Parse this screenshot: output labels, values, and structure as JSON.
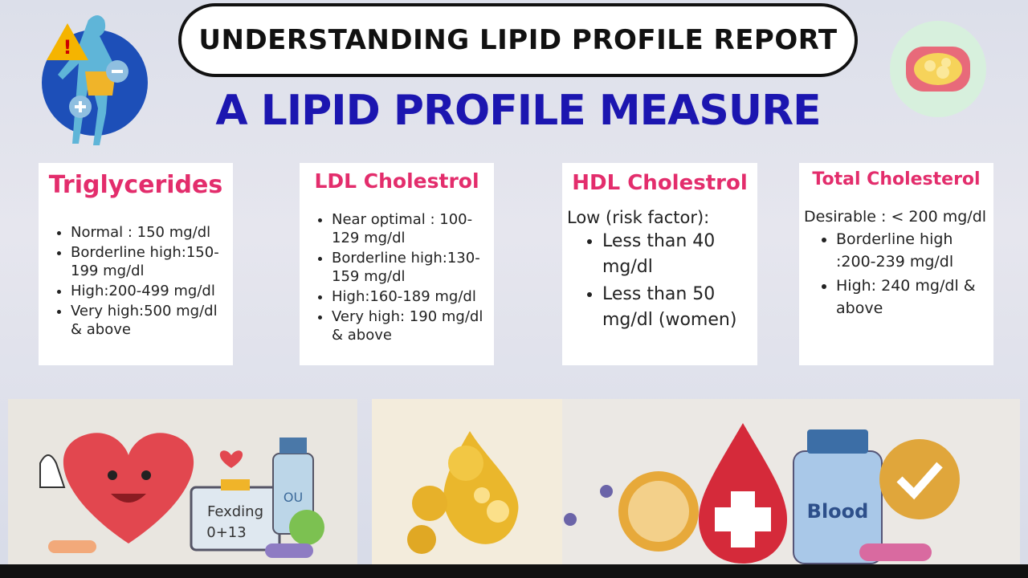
{
  "header": {
    "title": "UNDERSTANDING LIPID PROFILE REPORT",
    "subtitle": "A LIPID PROFILE MEASURE"
  },
  "cards": [
    {
      "title": "Triglycerides",
      "items": [
        "Normal : 150 mg/dl",
        "Borderline high:150-199 mg/dl",
        "High:200-499 mg/dl",
        "Very high:500 mg/dl & above"
      ]
    },
    {
      "title": "LDL Cholestrol",
      "items": [
        "Near optimal : 100-129 mg/dl",
        "Borderline high:130-159 mg/dl",
        "High:160-189 mg/dl",
        "Very high: 190 mg/dl & above"
      ]
    },
    {
      "title": "HDL Cholestrol",
      "intro": "Low (risk factor):",
      "items": [
        "Less than 40 mg/dl",
        "Less than 50 mg/dl (women)"
      ]
    },
    {
      "title": "Total Cholesterol",
      "intro": "Desirable : < 200 mg/dl",
      "items": [
        "Borderline high :200-239 mg/dl",
        "High: 240 mg/dl & above"
      ]
    }
  ],
  "illustration": {
    "clipboard": [
      "Fexding",
      "0+13"
    ],
    "bottle": "OU",
    "blood_bottle": "Blood"
  }
}
